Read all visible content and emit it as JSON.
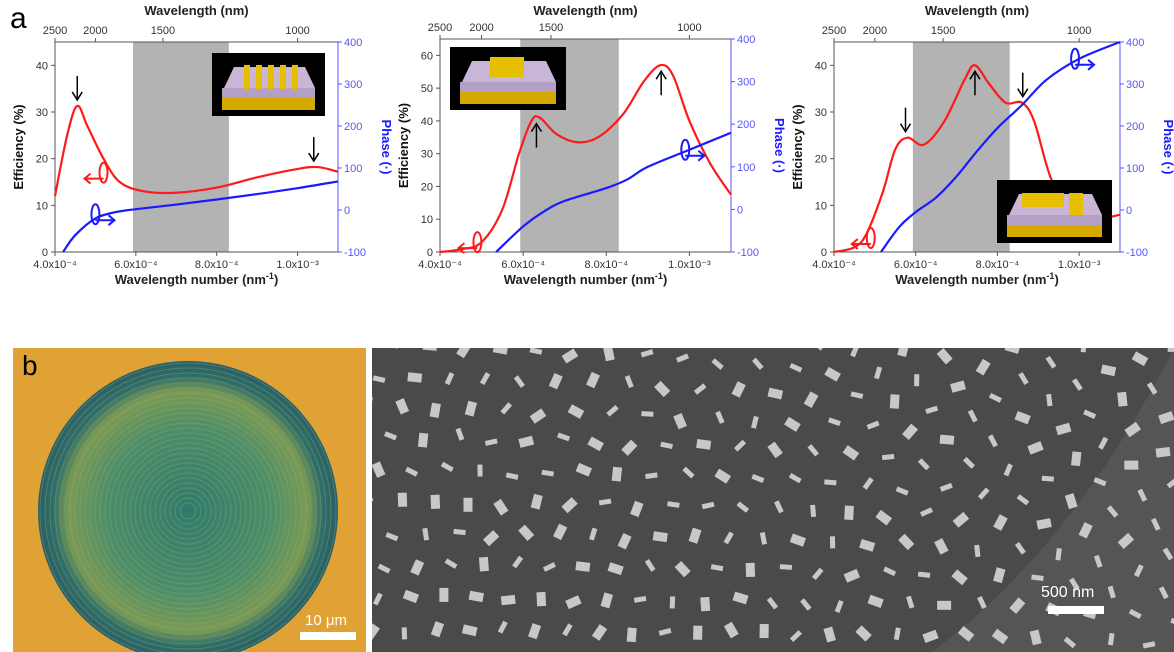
{
  "panel_labels": {
    "a": "a",
    "b": "b"
  },
  "colors": {
    "efficiency": "#ff1a1a",
    "phase": "#1a1aff",
    "band": "#b3b3b3",
    "phase_axis": "#5555ff"
  },
  "chart_data": [
    {
      "type": "line",
      "top_xlabel": "Wavelength (nm)",
      "top_ticks": [
        "2500",
        "2000",
        "1500",
        "1000"
      ],
      "top_tick_values": [
        0.0004,
        0.0005,
        0.000667,
        0.001
      ],
      "xlabel": "Wavelength number (nm",
      "xlabel_sup": "-1",
      "xlabel_close": ")",
      "ylabel": "Efficiency (%)",
      "y2label": "Phase (·)",
      "xlim": [
        0.0004,
        0.0011
      ],
      "ylim": [
        0,
        45
      ],
      "y2lim": [
        -100,
        400
      ],
      "xticks": [
        0.0004,
        0.0006,
        0.0008,
        0.001
      ],
      "xtick_labels": [
        "4.0x10⁻⁴",
        "6.0x10⁻⁴",
        "8.0x10⁻⁴",
        "1.0x10⁻³"
      ],
      "yticks": [
        "0",
        "10",
        "20",
        "30",
        "40"
      ],
      "y2ticks": [
        "-100",
        "0",
        "100",
        "200",
        "300",
        "400"
      ],
      "shaded_band": [
        0.000593,
        0.00083
      ],
      "inset": "grating",
      "arrows": [
        {
          "x": 0.000455,
          "y": 31.3,
          "dir": "down"
        },
        {
          "x": 0.00104,
          "y": 18.2,
          "dir": "down"
        }
      ],
      "series": [
        {
          "axis": "left",
          "color": "#ff1a1a",
          "x": [
            0.0004,
            0.00043,
            0.000455,
            0.00048,
            0.00052,
            0.00056,
            0.00062,
            0.0007,
            0.0008,
            0.0009,
            0.001,
            0.00105,
            0.0011
          ],
          "y": [
            12,
            25,
            31.3,
            27,
            20,
            15,
            13,
            12.7,
            13.8,
            16,
            17.8,
            18.2,
            17.2
          ]
        },
        {
          "axis": "right",
          "color": "#1a1aff",
          "x": [
            0.00042,
            0.00045,
            0.0005,
            0.00055,
            0.0006,
            0.0007,
            0.0008,
            0.0009,
            0.001,
            0.0011
          ],
          "y": [
            -100,
            -60,
            -20,
            -5,
            2,
            13,
            25,
            38,
            52,
            68
          ]
        }
      ]
    },
    {
      "type": "line",
      "top_xlabel": "Wavelength (nm)",
      "top_ticks": [
        "2500",
        "2000",
        "1500",
        "1000"
      ],
      "top_tick_values": [
        0.0004,
        0.0005,
        0.000667,
        0.001
      ],
      "xlabel": "Wavelength number (nm",
      "xlabel_sup": "-1",
      "xlabel_close": ")",
      "ylabel": "Efficiency (%)",
      "y2label": "Phase (·)",
      "xlim": [
        0.0004,
        0.0011
      ],
      "ylim": [
        0,
        65
      ],
      "y2lim": [
        -100,
        400
      ],
      "xticks": [
        0.0004,
        0.0006,
        0.0008,
        0.001
      ],
      "xtick_labels": [
        "4.0x10⁻⁴",
        "6.0x10⁻⁴",
        "8.0x10⁻⁴",
        "1.0x10⁻³"
      ],
      "yticks": [
        "0",
        "10",
        "20",
        "30",
        "40",
        "50",
        "60"
      ],
      "y2ticks": [
        "-100",
        "0",
        "100",
        "200",
        "300",
        "400"
      ],
      "shaded_band": [
        0.000593,
        0.00083
      ],
      "inset": "patch",
      "arrows": [
        {
          "x": 0.000632,
          "y": 41,
          "dir": "up"
        },
        {
          "x": 0.000932,
          "y": 57,
          "dir": "up"
        }
      ],
      "series": [
        {
          "axis": "left",
          "color": "#ff1a1a",
          "x": [
            0.0004,
            0.00045,
            0.0005,
            0.00055,
            0.00059,
            0.00062,
            0.00064,
            0.00068,
            0.00073,
            0.00078,
            0.00084,
            0.00089,
            0.00093,
            0.00096,
            0.001,
            0.00105,
            0.0011
          ],
          "y": [
            0,
            0.8,
            3,
            13,
            30,
            40,
            41,
            36,
            33.5,
            35,
            42,
            52,
            57,
            54,
            40,
            27,
            17.5
          ]
        },
        {
          "axis": "right",
          "color": "#1a1aff",
          "x": [
            0.000535,
            0.0006,
            0.00065,
            0.0007,
            0.0008,
            0.00085,
            0.0009,
            0.001,
            0.0011
          ],
          "y": [
            -100,
            -40,
            -5,
            20,
            50,
            70,
            100,
            140,
            180
          ]
        }
      ]
    },
    {
      "type": "line",
      "top_xlabel": "Wavelength (nm)",
      "top_ticks": [
        "2500",
        "2000",
        "1500",
        "1000"
      ],
      "top_tick_values": [
        0.0004,
        0.0005,
        0.000667,
        0.001
      ],
      "xlabel": "Wavelength number (nm",
      "xlabel_sup": "-1",
      "xlabel_close": ")",
      "ylabel": "Efficiency (%)",
      "y2label": "Phase (·)",
      "xlim": [
        0.0004,
        0.0011
      ],
      "ylim": [
        0,
        45
      ],
      "y2lim": [
        -100,
        400
      ],
      "xticks": [
        0.0004,
        0.0006,
        0.0008,
        0.001
      ],
      "xtick_labels": [
        "4.0x10⁻⁴",
        "6.0x10⁻⁴",
        "8.0x10⁻⁴",
        "1.0x10⁻³"
      ],
      "yticks": [
        "0",
        "10",
        "20",
        "30",
        "40"
      ],
      "y2ticks": [
        "-100",
        "0",
        "100",
        "200",
        "300",
        "400"
      ],
      "shaded_band": [
        0.000593,
        0.00083
      ],
      "inset": "two-patches",
      "arrows": [
        {
          "x": 0.000575,
          "y": 24.5,
          "dir": "down"
        },
        {
          "x": 0.000745,
          "y": 40,
          "dir": "up"
        },
        {
          "x": 0.000862,
          "y": 32,
          "dir": "down"
        }
      ],
      "series": [
        {
          "axis": "left",
          "color": "#ff1a1a",
          "x": [
            0.0004,
            0.00045,
            0.00048,
            0.00052,
            0.00055,
            0.00058,
            0.00062,
            0.00067,
            0.00072,
            0.000745,
            0.00078,
            0.00082,
            0.00086,
            0.00089,
            0.00093,
            0.00098,
            0.00105,
            0.0011
          ],
          "y": [
            0,
            1,
            4,
            13,
            22,
            24.5,
            23,
            28,
            37,
            40,
            36,
            32,
            32,
            28,
            16,
            8,
            7.2,
            8
          ]
        },
        {
          "axis": "right",
          "color": "#1a1aff",
          "x": [
            0.000515,
            0.00056,
            0.0006,
            0.00065,
            0.0007,
            0.00075,
            0.0008,
            0.00086,
            0.00092,
            0.001,
            0.0011
          ],
          "y": [
            -100,
            -40,
            -5,
            30,
            80,
            140,
            195,
            250,
            310,
            360,
            400
          ]
        }
      ]
    }
  ],
  "images": {
    "optical_scalebar": "10 μm",
    "sem_scalebar": "500 nm"
  }
}
